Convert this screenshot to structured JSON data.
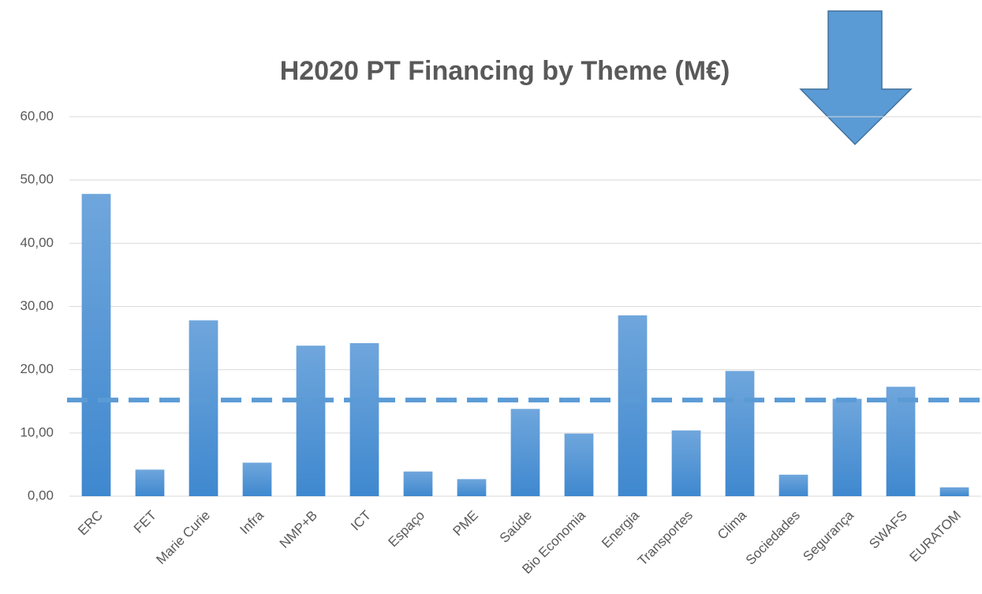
{
  "chart_data": {
    "type": "bar",
    "title": "H2020 PT Financing by Theme (M€)",
    "categories": [
      "ERC",
      "FET",
      "Marie Curie",
      "Infra",
      "NMP+B",
      "ICT",
      "Espaço",
      "PME",
      "Saúde",
      "Bio Economia",
      "Energia",
      "Transportes",
      "Clima",
      "Sociedades",
      "Segurança",
      "SWAFS",
      "EURATOM"
    ],
    "values": [
      47.8,
      4.2,
      27.8,
      5.3,
      23.8,
      24.2,
      3.9,
      2.7,
      13.8,
      9.9,
      28.6,
      10.4,
      19.8,
      3.4,
      15.4,
      17.3,
      1.4
    ],
    "color": "#5b9bd5",
    "reference_line": 15.2,
    "reference_color": "#5b9bd5",
    "ylim": [
      0,
      60
    ],
    "yticks": [
      {
        "value": 0,
        "label": "0,00"
      },
      {
        "value": 10,
        "label": "10,00"
      },
      {
        "value": 20,
        "label": "20,00"
      },
      {
        "value": 30,
        "label": "30,00"
      },
      {
        "value": 40,
        "label": "40,00"
      },
      {
        "value": 50,
        "label": "50,00"
      },
      {
        "value": 60,
        "label": "60,00"
      }
    ],
    "grid": true
  }
}
